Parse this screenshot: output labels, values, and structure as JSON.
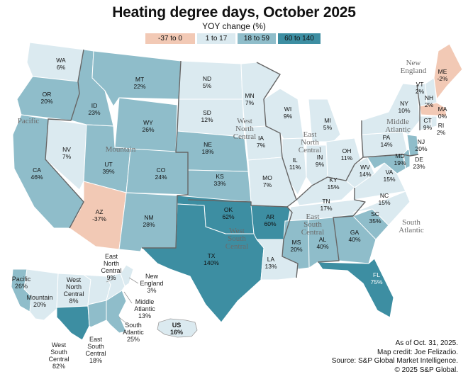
{
  "title": "Heating degree days, October 2025",
  "subtitle": "YOY change (%)",
  "legend": [
    {
      "label": "-37 to 0",
      "color": "#f2c9b5"
    },
    {
      "label": "1 to 17",
      "color": "#dbeaf0"
    },
    {
      "label": "18 to 59",
      "color": "#8fbdca"
    },
    {
      "label": "60 to 140",
      "color": "#3d8ea2"
    }
  ],
  "states": [
    {
      "abbr": "WA",
      "value": "6%"
    },
    {
      "abbr": "OR",
      "value": "20%"
    },
    {
      "abbr": "CA",
      "value": "46%"
    },
    {
      "abbr": "NV",
      "value": "7%"
    },
    {
      "abbr": "ID",
      "value": "23%"
    },
    {
      "abbr": "MT",
      "value": "22%"
    },
    {
      "abbr": "WY",
      "value": "26%"
    },
    {
      "abbr": "UT",
      "value": "39%"
    },
    {
      "abbr": "CO",
      "value": "24%"
    },
    {
      "abbr": "AZ",
      "value": "-37%"
    },
    {
      "abbr": "NM",
      "value": "28%"
    },
    {
      "abbr": "ND",
      "value": "5%"
    },
    {
      "abbr": "SD",
      "value": "12%"
    },
    {
      "abbr": "NE",
      "value": "18%"
    },
    {
      "abbr": "KS",
      "value": "33%"
    },
    {
      "abbr": "OK",
      "value": "62%"
    },
    {
      "abbr": "TX",
      "value": "140%"
    },
    {
      "abbr": "MN",
      "value": "7%"
    },
    {
      "abbr": "IA",
      "value": "7%"
    },
    {
      "abbr": "MO",
      "value": "7%"
    },
    {
      "abbr": "AR",
      "value": "60%"
    },
    {
      "abbr": "LA",
      "value": "13%"
    },
    {
      "abbr": "WI",
      "value": "9%"
    },
    {
      "abbr": "IL",
      "value": "11%"
    },
    {
      "abbr": "MI",
      "value": "5%"
    },
    {
      "abbr": "IN",
      "value": "9%"
    },
    {
      "abbr": "OH",
      "value": "11%"
    },
    {
      "abbr": "KY",
      "value": "15%"
    },
    {
      "abbr": "TN",
      "value": "17%"
    },
    {
      "abbr": "MS",
      "value": "20%"
    },
    {
      "abbr": "AL",
      "value": "40%"
    },
    {
      "abbr": "GA",
      "value": "40%"
    },
    {
      "abbr": "FL",
      "value": "75%"
    },
    {
      "abbr": "SC",
      "value": "35%"
    },
    {
      "abbr": "NC",
      "value": "15%"
    },
    {
      "abbr": "VA",
      "value": "15%"
    },
    {
      "abbr": "WV",
      "value": "14%"
    },
    {
      "abbr": "PA",
      "value": "14%"
    },
    {
      "abbr": "NY",
      "value": "10%"
    },
    {
      "abbr": "NJ",
      "value": "20%"
    },
    {
      "abbr": "DE",
      "value": "23%"
    },
    {
      "abbr": "MD",
      "value": "19%"
    },
    {
      "abbr": "VT",
      "value": "2%"
    },
    {
      "abbr": "NH",
      "value": "2%"
    },
    {
      "abbr": "ME",
      "value": "-2%"
    },
    {
      "abbr": "MA",
      "value": "0%"
    },
    {
      "abbr": "CT",
      "value": "9%"
    },
    {
      "abbr": "RI",
      "value": "2%"
    }
  ],
  "regions": [
    {
      "name": "Pacific"
    },
    {
      "name": "Mountain"
    },
    {
      "name": "West North Central"
    },
    {
      "name": "East North Central"
    },
    {
      "name": "West South Central"
    },
    {
      "name": "East South Central"
    },
    {
      "name": "South Atlantic"
    },
    {
      "name": "Middle Atlantic"
    },
    {
      "name": "New England"
    }
  ],
  "inset": {
    "regions": [
      {
        "name": "Pacific",
        "value": "26%"
      },
      {
        "name": "Mountain",
        "value": "20%"
      },
      {
        "name": "West North Central",
        "value": "8%"
      },
      {
        "name": "East North Central",
        "value": "9%"
      },
      {
        "name": "New England",
        "value": "3%"
      },
      {
        "name": "Middle Atlantic",
        "value": "13%"
      },
      {
        "name": "South Atlantic",
        "value": "25%"
      },
      {
        "name": "East South Central",
        "value": "18%"
      },
      {
        "name": "West South Central",
        "value": "82%"
      }
    ],
    "us_label": "US",
    "us_value": "16%"
  },
  "footer": [
    "As of Oct. 31, 2025.",
    "Map credit: Joe Felizadio.",
    "Source: S&P Global Market Intelligence.",
    "© 2025 S&P Global."
  ]
}
